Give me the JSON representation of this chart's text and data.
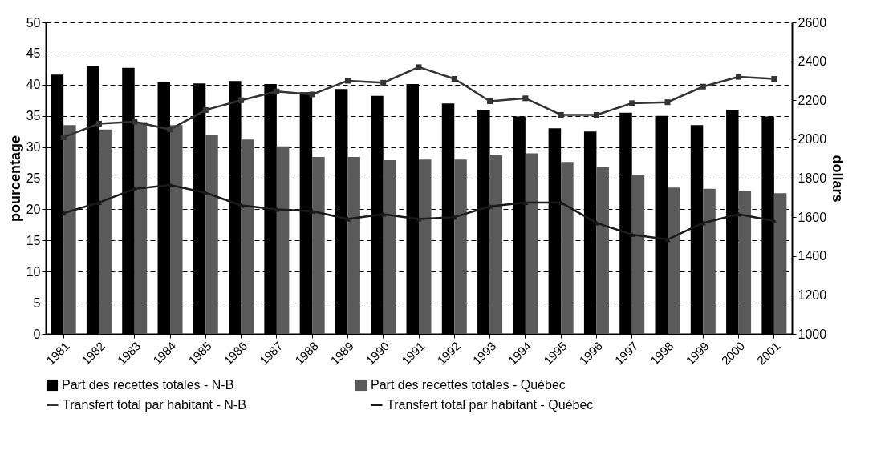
{
  "chart_data": {
    "type": "bar",
    "ylabel": "pourcentage",
    "y2label": "dollars",
    "categories": [
      "1981",
      "1982",
      "1983",
      "1984",
      "1985",
      "1986",
      "1987",
      "1988",
      "1989",
      "1990",
      "1991",
      "1992",
      "1993",
      "1994",
      "1995",
      "1996",
      "1997",
      "1998",
      "1999",
      "2000",
      "2001"
    ],
    "series": [
      {
        "name": "Part des recettes totales - N-B",
        "color": "#000000",
        "values": [
          41.6,
          43,
          42.7,
          40.4,
          40.2,
          40.6,
          40.1,
          38.8,
          39.3,
          38.2,
          40.1,
          37,
          36,
          34.9,
          33,
          32.5,
          35.5,
          35,
          33.5,
          36,
          34.9
        ]
      },
      {
        "name": "Part des recettes totales - Québec",
        "color": "#5a5a5a",
        "values": [
          33.5,
          32.8,
          34,
          33.5,
          32,
          31.2,
          30.1,
          28.4,
          28.4,
          27.9,
          28,
          28,
          28.8,
          29,
          27.6,
          26.8,
          25.5,
          23.5,
          23.3,
          23,
          22.6
        ]
      },
      {
        "name": "Transfert total par habitant - N-B",
        "type": "line",
        "axis": "y2",
        "marker": "square",
        "color": "#333333",
        "values": [
          2010,
          2080,
          2090,
          2050,
          2150,
          2200,
          2245,
          2230,
          2300,
          2290,
          2370,
          2310,
          2195,
          2210,
          2125,
          2125,
          2185,
          2190,
          2270,
          2320,
          2310
        ]
      },
      {
        "name": "Transfert total par habitant - Québec",
        "type": "line",
        "axis": "y2",
        "marker": "triangle",
        "color": "#1a1a1a",
        "values": [
          1620,
          1675,
          1745,
          1765,
          1725,
          1660,
          1640,
          1630,
          1590,
          1615,
          1590,
          1600,
          1655,
          1675,
          1675,
          1570,
          1510,
          1485,
          1570,
          1615,
          1580
        ]
      }
    ],
    "ylim": [
      0,
      50
    ],
    "yticks": [
      0,
      5,
      10,
      15,
      20,
      25,
      30,
      35,
      40,
      45,
      50
    ],
    "y2lim": [
      1000,
      2600
    ],
    "y2ticks": [
      1000,
      1200,
      1400,
      1600,
      1800,
      2000,
      2200,
      2400,
      2600
    ],
    "grid": "y",
    "legend": "bottom"
  }
}
